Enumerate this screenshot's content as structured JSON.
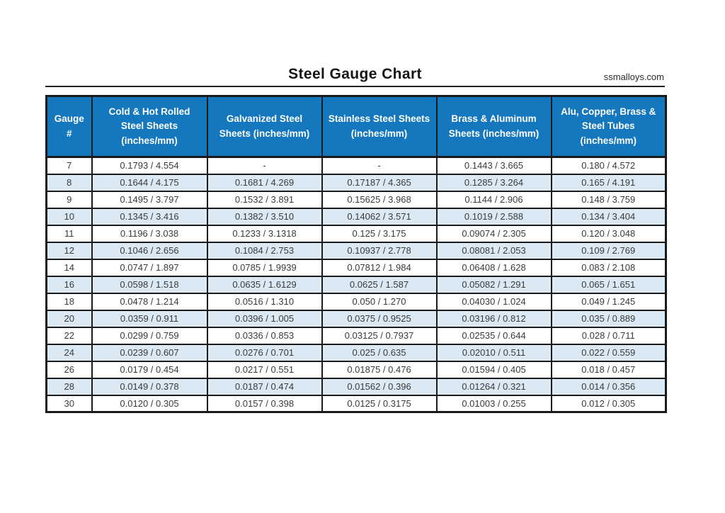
{
  "header": {
    "title": "Steel Gauge Chart",
    "website": "ssmalloys.com"
  },
  "table": {
    "columns": [
      "Gauge\n#",
      "Cold & Hot Rolled\nSteel Sheets\n(inches/mm)",
      "Galvanized Steel\nSheets (inches/mm)",
      "Stainless Steel Sheets\n(inches/mm)",
      "Brass & Aluminum\nSheets (inches/mm)",
      "Alu, Copper, Brass &\nSteel Tubes\n(inches/mm)"
    ],
    "rows": [
      [
        "7",
        "0.1793 / 4.554",
        "-",
        "-",
        "0.1443 / 3.665",
        "0.180 / 4.572"
      ],
      [
        "8",
        "0.1644 / 4.175",
        "0.1681 / 4.269",
        "0.17187 / 4.365",
        "0.1285 / 3.264",
        "0.165 / 4.191"
      ],
      [
        "9",
        "0.1495 / 3.797",
        "0.1532 / 3.891",
        "0.15625 / 3.968",
        "0.1144 / 2.906",
        "0.148 / 3.759"
      ],
      [
        "10",
        "0.1345 / 3.416",
        "0.1382 / 3.510",
        "0.14062 / 3.571",
        "0.1019 / 2.588",
        "0.134 / 3.404"
      ],
      [
        "11",
        "0.1196 / 3.038",
        "0.1233 / 3.1318",
        "0.125 / 3.175",
        "0.09074 / 2.305",
        "0.120 / 3.048"
      ],
      [
        "12",
        "0.1046 / 2.656",
        "0.1084 / 2.753",
        "0.10937 / 2.778",
        "0.08081 / 2.053",
        "0.109 / 2.769"
      ],
      [
        "14",
        "0.0747 / 1.897",
        "0.0785 / 1.9939",
        "0.07812 / 1.984",
        "0.06408 / 1.628",
        "0.083 / 2.108"
      ],
      [
        "16",
        "0.0598 / 1.518",
        "0.0635 / 1.6129",
        "0.0625 / 1.587",
        "0.05082 / 1.291",
        "0.065 / 1.651"
      ],
      [
        "18",
        "0.0478 / 1.214",
        "0.0516 / 1.310",
        "0.050 / 1.270",
        "0.04030 / 1.024",
        "0.049 / 1.245"
      ],
      [
        "20",
        "0.0359 / 0.911",
        "0.0396 / 1.005",
        "0.0375 / 0.9525",
        "0.03196 / 0.812",
        "0.035 / 0.889"
      ],
      [
        "22",
        "0.0299 / 0.759",
        "0.0336 / 0.853",
        "0.03125 / 0.7937",
        "0.02535 / 0.644",
        "0.028 / 0.711"
      ],
      [
        "24",
        "0.0239 / 0.607",
        "0.0276 / 0.701",
        "0.025 / 0.635",
        "0.02010 / 0.511",
        "0.022 / 0.559"
      ],
      [
        "26",
        "0.0179 / 0.454",
        "0.0217 / 0.551",
        "0.01875 / 0.476",
        "0.01594 / 0.405",
        "0.018 / 0.457"
      ],
      [
        "28",
        "0.0149 / 0.378",
        "0.0187 / 0.474",
        "0.01562 / 0.396",
        "0.01264 / 0.321",
        "0.014 / 0.356"
      ],
      [
        "30",
        "0.0120 / 0.305",
        "0.0157 / 0.398",
        "0.0125 / 0.3175",
        "0.01003 / 0.255",
        "0.012 / 0.305"
      ]
    ]
  },
  "colors": {
    "header_bg": "#1578BE",
    "alt_row_bg": "#DBE9F5",
    "border": "#1A1A1A",
    "header_text": "#FFFFFF",
    "body_text": "#3A3A3A"
  }
}
